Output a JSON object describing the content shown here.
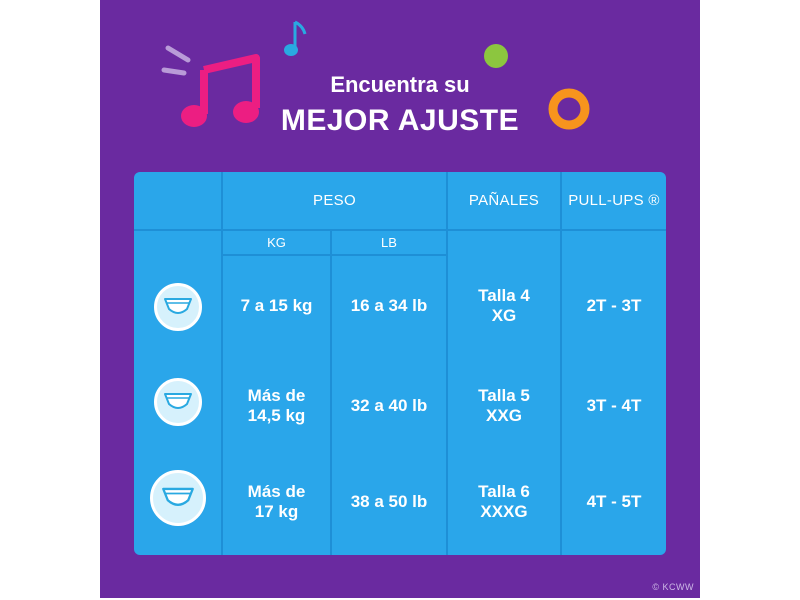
{
  "header": {
    "line1": "Encuentra su",
    "line2": "MEJOR AJUSTE"
  },
  "table": {
    "headers": {
      "peso": "PESO",
      "panales": "PAÑALES",
      "pullups": "PULL-UPS ®"
    },
    "subheaders": {
      "kg": "KG",
      "lb": "LB"
    },
    "rows": [
      {
        "kg": "7 a 15 kg",
        "lb": "16 a 34 lb",
        "panales": "Talla 4\nXG",
        "pullups": "2T - 3T"
      },
      {
        "kg": "Más de\n14,5 kg",
        "lb": "32 a 40 lb",
        "panales": "Talla 5\nXXG",
        "pullups": "3T - 4T"
      },
      {
        "kg": "Más de\n17 kg",
        "lb": "38 a 50 lb",
        "panales": "Talla 6\nXXXG",
        "pullups": "4T - 5T"
      }
    ]
  },
  "footer": {
    "copyright": "© KCWW"
  },
  "icons": {
    "row_icon": "diaper-icon",
    "decorations": [
      "music-notes-icon",
      "small-music-note-icon",
      "green-dot-icon",
      "orange-ring-icon"
    ]
  },
  "colors": {
    "background": "#6a2aa0",
    "table": "#2aa6ea",
    "pink": "#ec1e82",
    "green": "#8cc63f",
    "orange": "#f7941d",
    "blue": "#29a9e1"
  }
}
